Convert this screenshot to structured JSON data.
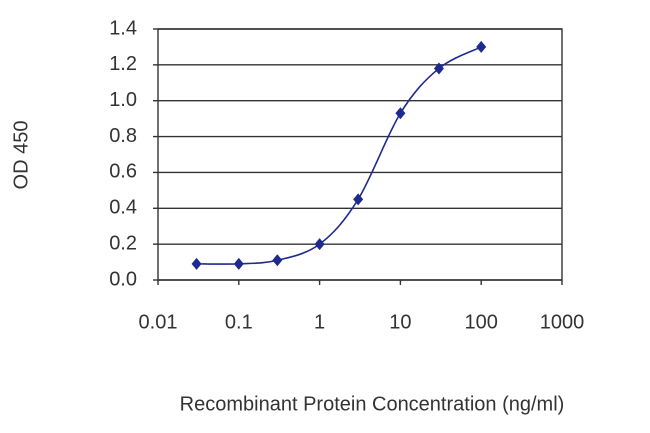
{
  "chart_data": {
    "type": "line",
    "x_label": "Recombinant Protein Concentration (ng/ml)",
    "y_label": "OD 450",
    "x": [
      0.03,
      0.1,
      0.3,
      1,
      3,
      10,
      30,
      100
    ],
    "series": [
      {
        "color": "#1f2a8f",
        "values": [
          0.09,
          0.09,
          0.11,
          0.2,
          0.45,
          0.93,
          1.18,
          1.3
        ]
      }
    ],
    "xlim": [
      0.01,
      1000
    ],
    "xticks": [
      0.01,
      0.1,
      1,
      10,
      100,
      1000
    ],
    "xscale": "log",
    "ylim": [
      0,
      1.4
    ],
    "yticks": [
      {
        "value": 0,
        "label": "0.0"
      },
      0.2,
      0.4,
      0.6,
      0.8,
      {
        "value": 1,
        "label": "1.0"
      },
      1.2,
      1.4
    ],
    "grid": true
  }
}
